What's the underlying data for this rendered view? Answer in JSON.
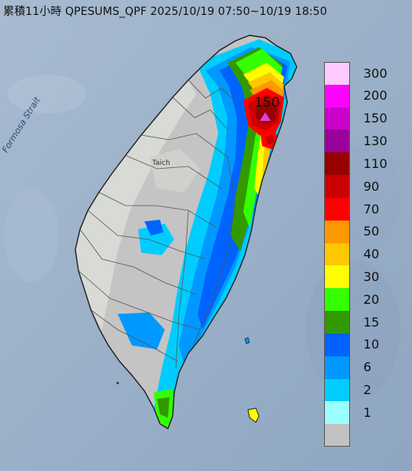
{
  "title": "累積11小時 QPESUMS_QPF 2025/10/19 07:50~10/19 18:50",
  "map": {
    "strait_label": "Formosa Strait",
    "city_label": "Taich",
    "peak": {
      "value_label": "150",
      "marker_color": "#e040e0"
    }
  },
  "legend": {
    "items": [
      {
        "label": "300",
        "color": "#fdcbfd"
      },
      {
        "label": "200",
        "color": "#fd02fd"
      },
      {
        "label": "150",
        "color": "#cb00cb"
      },
      {
        "label": "130",
        "color": "#9a009a"
      },
      {
        "label": "110",
        "color": "#990000"
      },
      {
        "label": "90",
        "color": "#cc0000"
      },
      {
        "label": "70",
        "color": "#fe0000"
      },
      {
        "label": "50",
        "color": "#fe9800"
      },
      {
        "label": "40",
        "color": "#fec801"
      },
      {
        "label": "30",
        "color": "#fefe00"
      },
      {
        "label": "20",
        "color": "#33ff00"
      },
      {
        "label": "15",
        "color": "#339900"
      },
      {
        "label": "10",
        "color": "#0063ff"
      },
      {
        "label": "6",
        "color": "#0099ff"
      },
      {
        "label": "2",
        "color": "#00ccff"
      },
      {
        "label": "1",
        "color": "#9bffff"
      },
      {
        "label": "",
        "color": "#c2c2c2"
      }
    ]
  }
}
